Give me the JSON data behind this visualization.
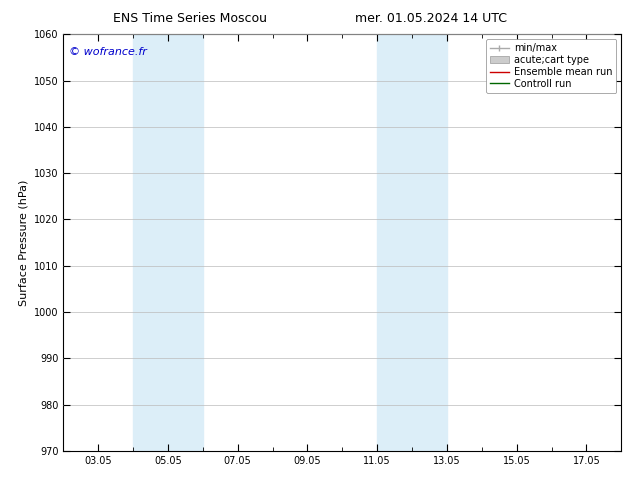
{
  "title_left": "ENS Time Series Moscou",
  "title_right": "mer. 01.05.2024 14 UTC",
  "ylabel": "Surface Pressure (hPa)",
  "ylim": [
    970,
    1060
  ],
  "yticks": [
    970,
    980,
    990,
    1000,
    1010,
    1020,
    1030,
    1040,
    1050,
    1060
  ],
  "xtick_labels": [
    "03.05",
    "05.05",
    "07.05",
    "09.05",
    "11.05",
    "13.05",
    "15.05",
    "17.05"
  ],
  "xtick_positions": [
    2,
    4,
    6,
    8,
    10,
    12,
    14,
    16
  ],
  "shaded_bands": [
    {
      "x_start": 3,
      "x_end": 5
    },
    {
      "x_start": 10,
      "x_end": 12
    }
  ],
  "watermark": "© wofrance.fr",
  "watermark_color": "#0000cc",
  "background_color": "#ffffff",
  "plot_bg_color": "#ffffff",
  "band_color": "#dceef8",
  "grid_color": "#bbbbbb",
  "legend_items": [
    {
      "label": "min/max",
      "color": "#aaaaaa",
      "lw": 1.0,
      "style": "-",
      "type": "line_caps"
    },
    {
      "label": "acute;cart type",
      "color": "#cccccc",
      "lw": 5,
      "style": "-",
      "type": "patch"
    },
    {
      "label": "Ensemble mean run",
      "color": "#cc0000",
      "lw": 1.0,
      "style": "-",
      "type": "line"
    },
    {
      "label": "Controll run",
      "color": "#006600",
      "lw": 1.0,
      "style": "-",
      "type": "line"
    }
  ],
  "x_min": 1,
  "x_max": 17,
  "title_fontsize": 9,
  "tick_fontsize": 7,
  "ylabel_fontsize": 8,
  "legend_fontsize": 7,
  "watermark_fontsize": 8
}
